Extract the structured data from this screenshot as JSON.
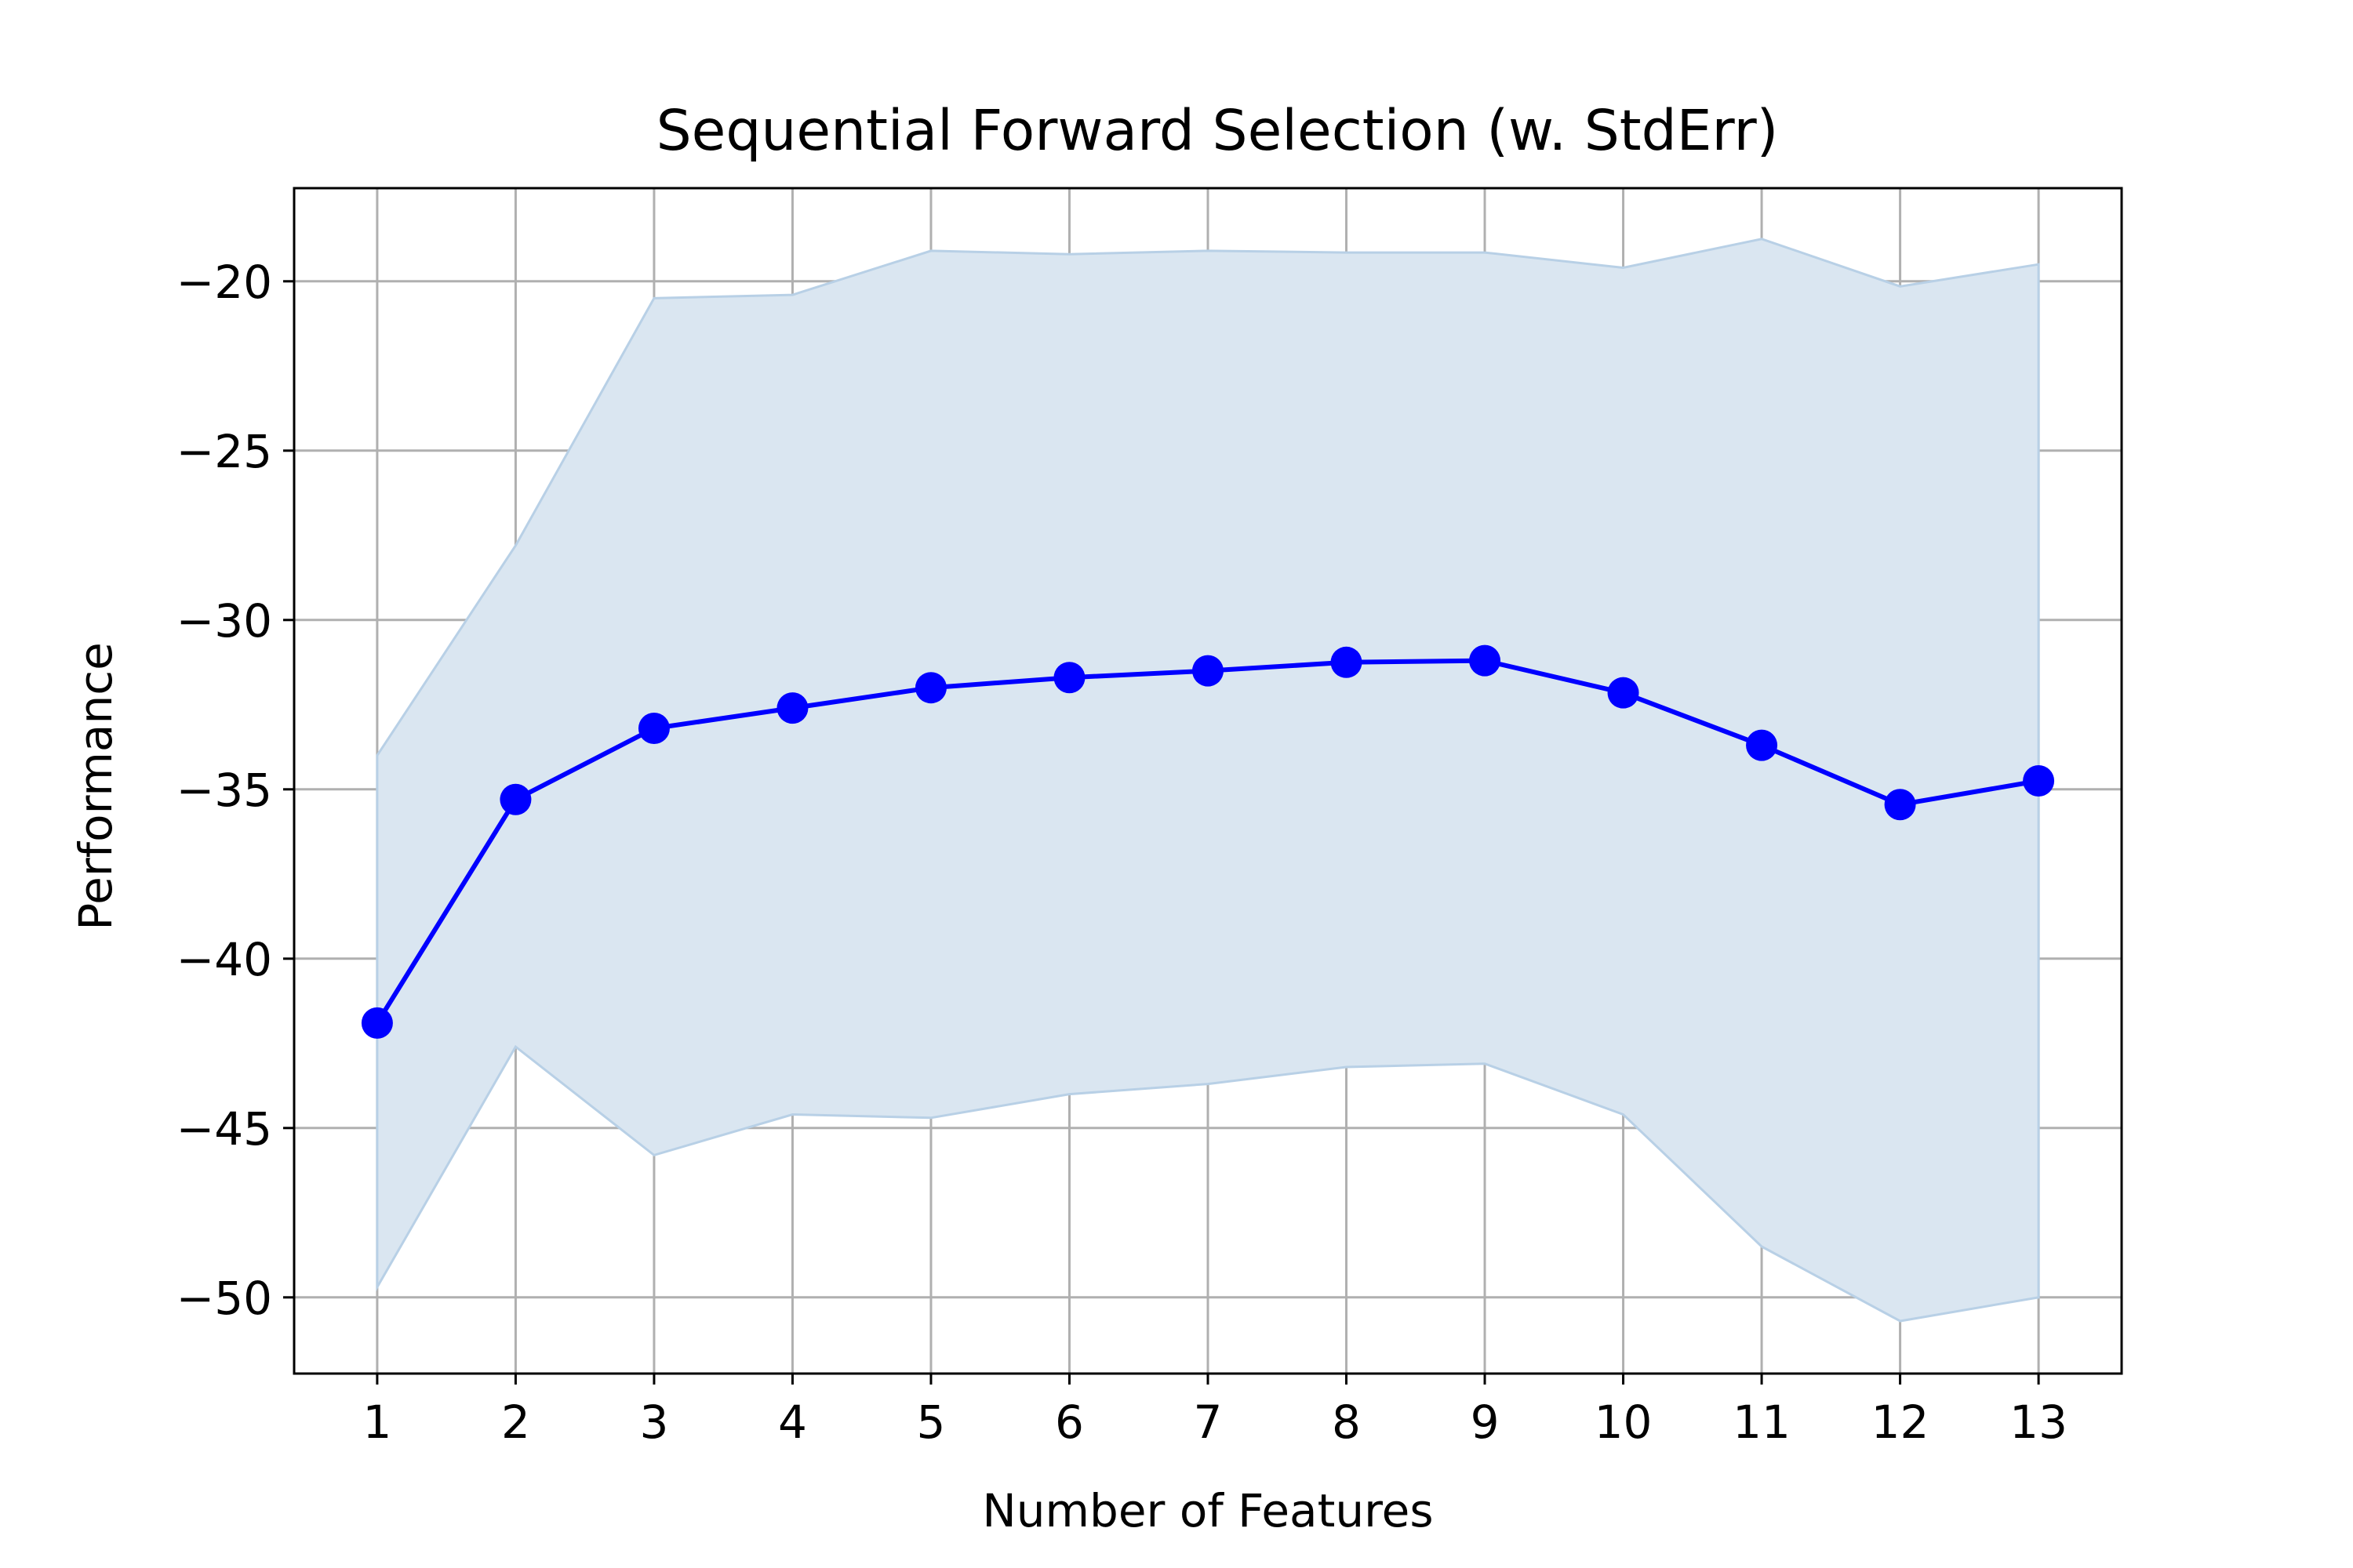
{
  "chart_data": {
    "type": "line",
    "title": "Sequential Forward Selection (w. StdErr)",
    "xlabel": "Number of Features",
    "ylabel": "Performance",
    "x": [
      1,
      2,
      3,
      4,
      5,
      6,
      7,
      8,
      9,
      10,
      11,
      12,
      13
    ],
    "xticks": [
      "1",
      "2",
      "3",
      "4",
      "5",
      "6",
      "7",
      "8",
      "9",
      "10",
      "11",
      "12",
      "13"
    ],
    "yticks": [
      {
        "value": -20,
        "label": "−20"
      },
      {
        "value": -25,
        "label": "−25"
      },
      {
        "value": -30,
        "label": "−30"
      },
      {
        "value": -35,
        "label": "−35"
      },
      {
        "value": -40,
        "label": "−40"
      },
      {
        "value": -45,
        "label": "−45"
      },
      {
        "value": -50,
        "label": "−50"
      }
    ],
    "xlim": [
      0.4,
      13.6
    ],
    "ylim": [
      -52.25,
      -17.25
    ],
    "grid": true,
    "series": [
      {
        "values": [
          -41.9,
          -35.3,
          -33.2,
          -32.6,
          -32.0,
          -31.7,
          -31.5,
          -31.25,
          -31.2,
          -32.15,
          -33.7,
          -35.45,
          -34.75
        ],
        "upper": [
          -34.0,
          -27.8,
          -20.5,
          -20.4,
          -19.1,
          -19.2,
          -19.1,
          -19.15,
          -19.15,
          -19.6,
          -18.75,
          -20.15,
          -19.5
        ],
        "lower": [
          -49.7,
          -42.6,
          -45.8,
          -44.6,
          -44.7,
          -44.0,
          -43.7,
          -43.2,
          -43.1,
          -44.6,
          -48.5,
          -50.7,
          -50.0
        ],
        "line_color": "#0000ff",
        "band_color": "#dae6f1",
        "band_edge_color": "#b8d0e6"
      }
    ]
  }
}
